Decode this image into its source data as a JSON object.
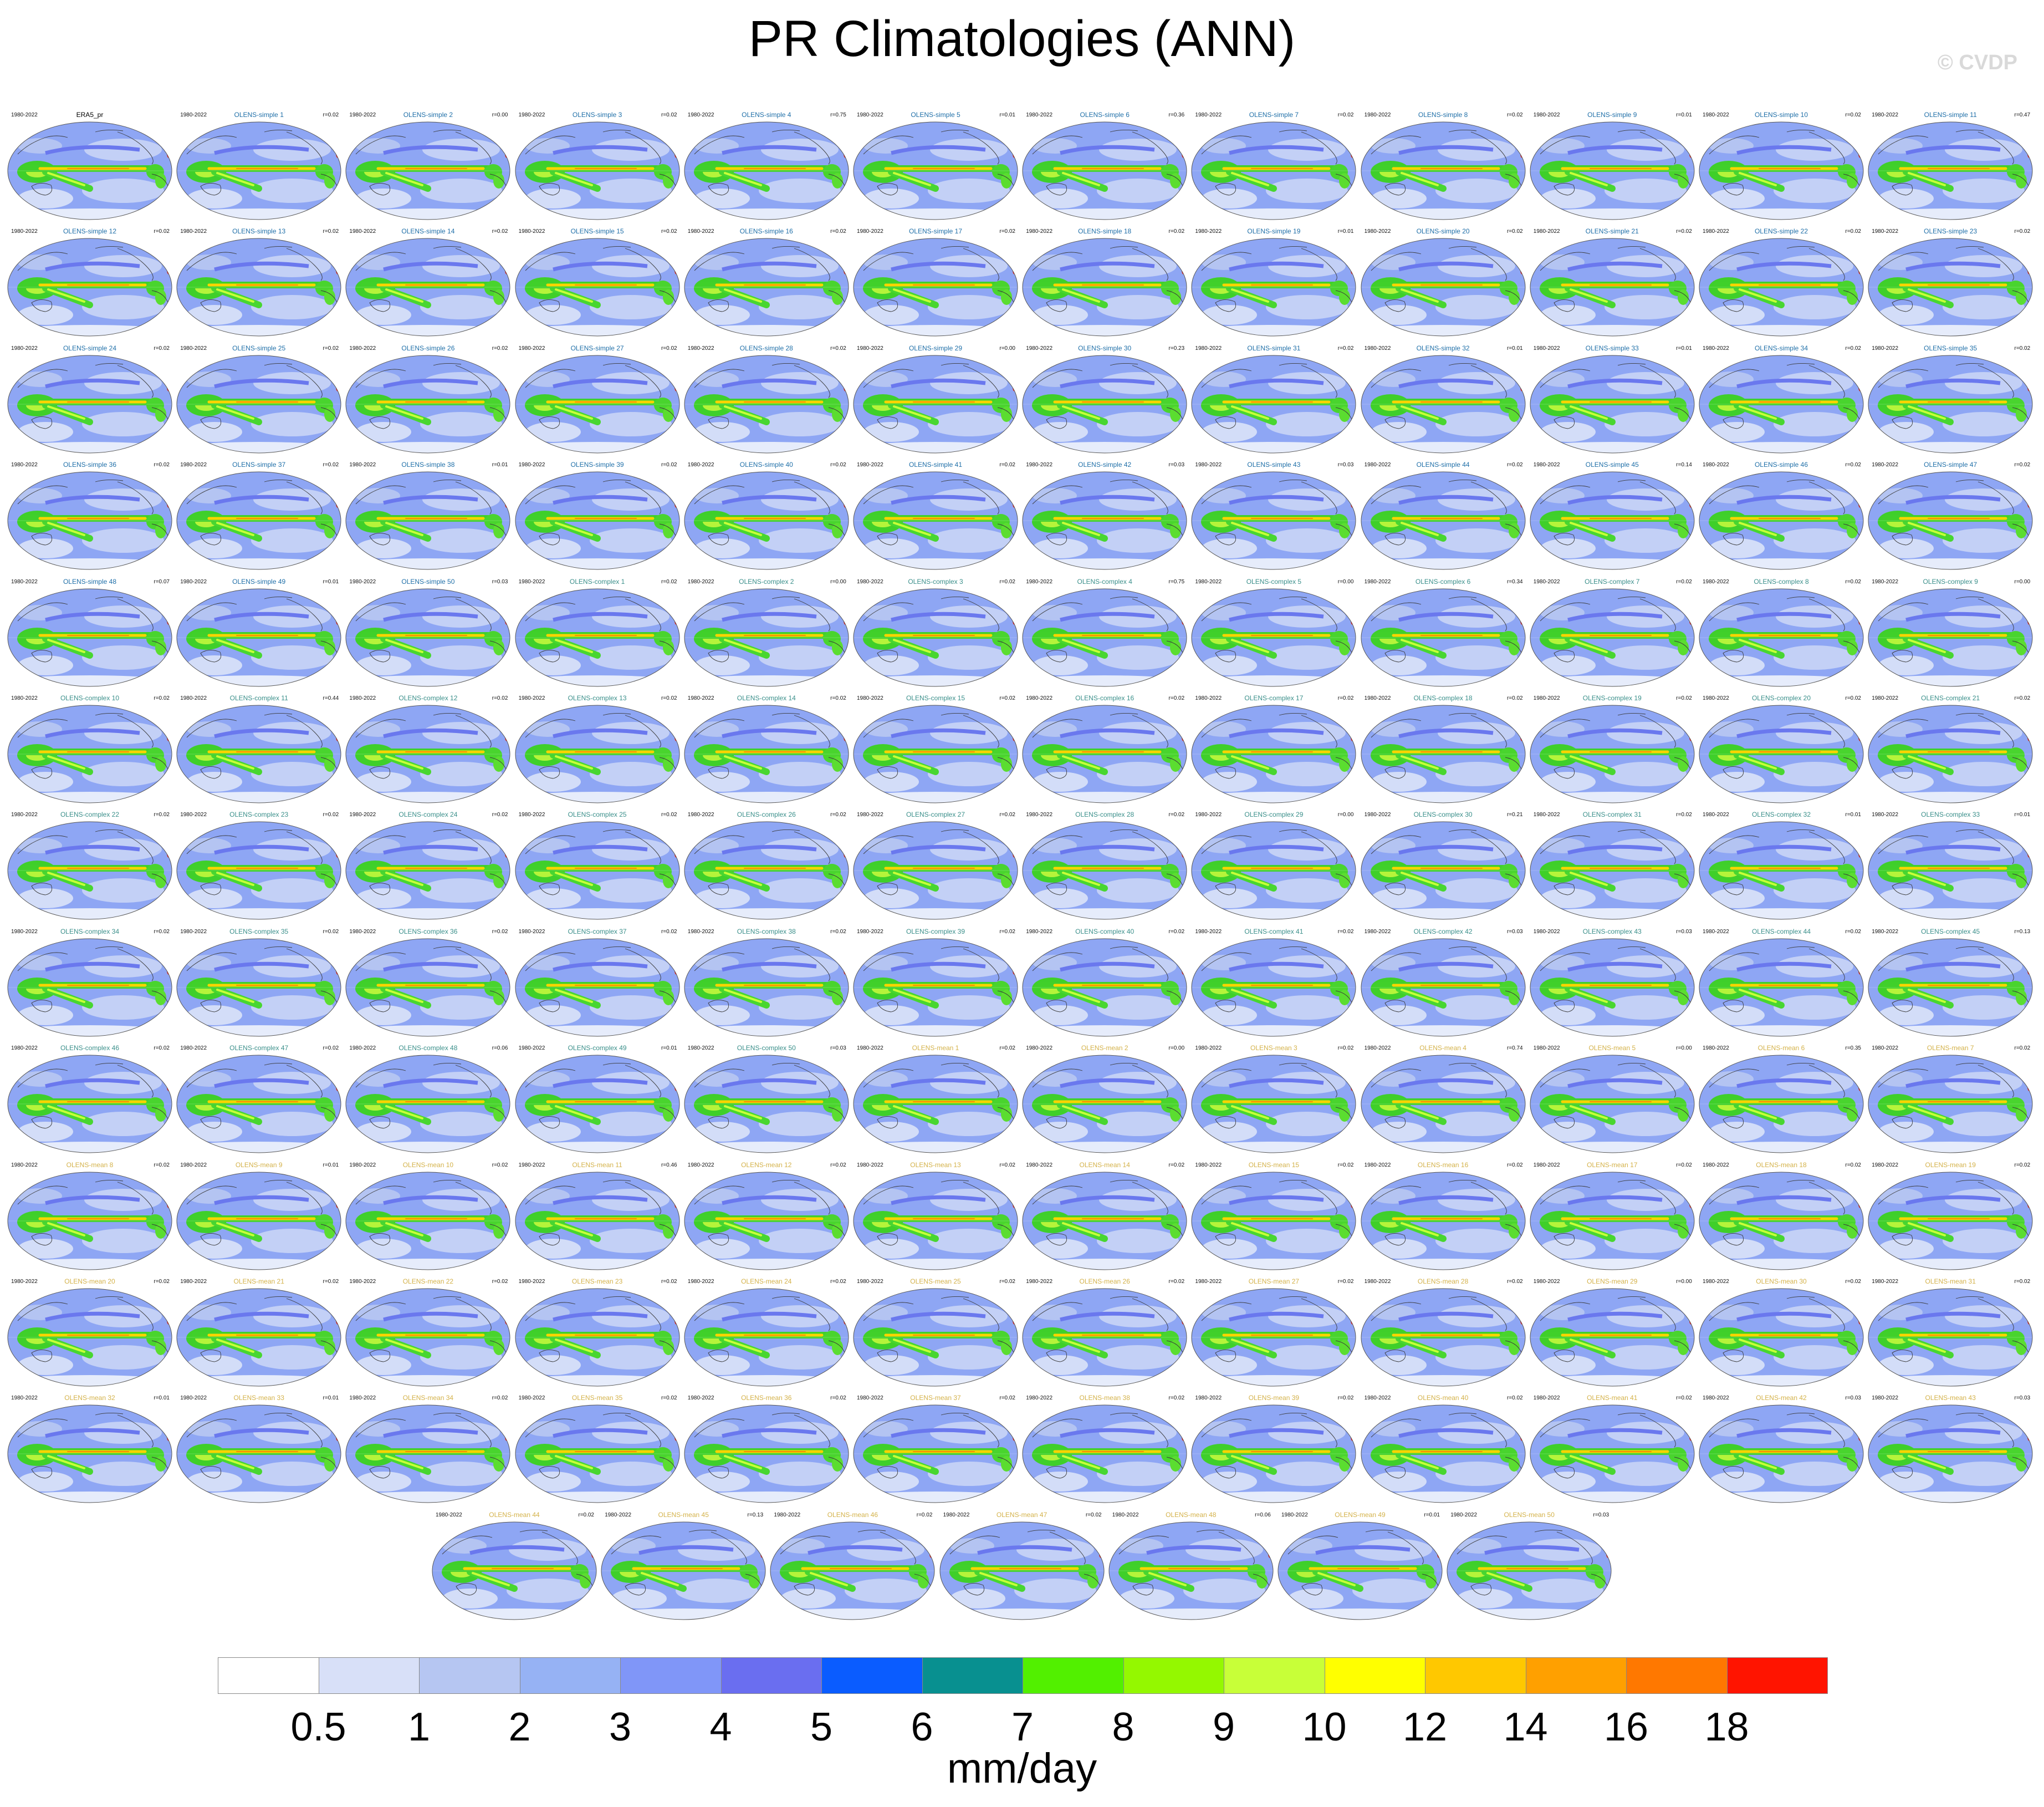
{
  "title": "PR Climatologies (ANN)",
  "credit": "© CVDP",
  "period": "1980-2022",
  "units": "mm/day",
  "colorbar": {
    "labels": [
      "0.5",
      "1",
      "2",
      "3",
      "4",
      "5",
      "6",
      "7",
      "8",
      "9",
      "10",
      "12",
      "14",
      "16",
      "18"
    ],
    "colors": [
      "#ffffff",
      "#d8e0f8",
      "#b6c6f2",
      "#96b2f4",
      "#8096f8",
      "#6a6ef0",
      "#0a5cff",
      "#089090",
      "#52f000",
      "#94f800",
      "#c8ff38",
      "#ffff00",
      "#ffc800",
      "#ffa000",
      "#ff7800",
      "#ff1400"
    ]
  },
  "panel_names": [
    "ERA5_pr",
    "OLENS-simple 1",
    "OLENS-simple 2",
    "OLENS-simple 3",
    "OLENS-simple 4",
    "OLENS-simple 5",
    "OLENS-simple 6",
    "OLENS-simple 7",
    "OLENS-simple 8",
    "OLENS-simple 9",
    "OLENS-simple 10",
    "OLENS-simple 11",
    "OLENS-simple 12",
    "OLENS-simple 13",
    "OLENS-simple 14",
    "OLENS-simple 15",
    "OLENS-simple 16",
    "OLENS-simple 17",
    "OLENS-simple 18",
    "OLENS-simple 19",
    "OLENS-simple 20",
    "OLENS-simple 21",
    "OLENS-simple 22",
    "OLENS-simple 23",
    "OLENS-simple 24",
    "OLENS-simple 25",
    "OLENS-simple 26",
    "OLENS-simple 27",
    "OLENS-simple 28",
    "OLENS-simple 29",
    "OLENS-simple 30",
    "OLENS-simple 31",
    "OLENS-simple 32",
    "OLENS-simple 33",
    "OLENS-simple 34",
    "OLENS-simple 35",
    "OLENS-simple 36",
    "OLENS-simple 37",
    "OLENS-simple 38",
    "OLENS-simple 39",
    "OLENS-simple 40",
    "OLENS-simple 41",
    "OLENS-simple 42",
    "OLENS-simple 43",
    "OLENS-simple 44",
    "OLENS-simple 45",
    "OLENS-simple 46",
    "OLENS-simple 47",
    "OLENS-simple 48",
    "OLENS-simple 49",
    "OLENS-simple 50",
    "OLENS-complex 1",
    "OLENS-complex 2",
    "OLENS-complex 3",
    "OLENS-complex 4",
    "OLENS-complex 5",
    "OLENS-complex 6",
    "OLENS-complex 7",
    "OLENS-complex 8",
    "OLENS-complex 9",
    "OLENS-complex 10",
    "OLENS-complex 11",
    "OLENS-complex 12",
    "OLENS-complex 13",
    "OLENS-complex 14",
    "OLENS-complex 15",
    "OLENS-complex 16",
    "OLENS-complex 17",
    "OLENS-complex 18",
    "OLENS-complex 19",
    "OLENS-complex 20",
    "OLENS-complex 21",
    "OLENS-complex 22",
    "OLENS-complex 23",
    "OLENS-complex 24",
    "OLENS-complex 25",
    "OLENS-complex 26",
    "OLENS-complex 27",
    "OLENS-complex 28",
    "OLENS-complex 29",
    "OLENS-complex 30",
    "OLENS-complex 31",
    "OLENS-complex 32",
    "OLENS-complex 33",
    "OLENS-complex 34",
    "OLENS-complex 35",
    "OLENS-complex 36",
    "OLENS-complex 37",
    "OLENS-complex 38",
    "OLENS-complex 39",
    "OLENS-complex 40",
    "OLENS-complex 41",
    "OLENS-complex 42",
    "OLENS-complex 43",
    "OLENS-complex 44",
    "OLENS-complex 45",
    "OLENS-complex 46",
    "OLENS-complex 47",
    "OLENS-complex 48",
    "OLENS-complex 49",
    "OLENS-complex 50",
    "OLENS-mean 1",
    "OLENS-mean 2",
    "OLENS-mean 3",
    "OLENS-mean 4",
    "OLENS-mean 5",
    "OLENS-mean 6",
    "OLENS-mean 7",
    "OLENS-mean 8",
    "OLENS-mean 9",
    "OLENS-mean 10",
    "OLENS-mean 11",
    "OLENS-mean 12",
    "OLENS-mean 13",
    "OLENS-mean 14",
    "OLENS-mean 15",
    "OLENS-mean 16",
    "OLENS-mean 17",
    "OLENS-mean 18",
    "OLENS-mean 19",
    "OLENS-mean 20",
    "OLENS-mean 21",
    "OLENS-mean 22",
    "OLENS-mean 23",
    "OLENS-mean 24",
    "OLENS-mean 25",
    "OLENS-mean 26",
    "OLENS-mean 27",
    "OLENS-mean 28",
    "OLENS-mean 29",
    "OLENS-mean 30",
    "OLENS-mean 31",
    "OLENS-mean 32",
    "OLENS-mean 33",
    "OLENS-mean 34",
    "OLENS-mean 35",
    "OLENS-mean 36",
    "OLENS-mean 37",
    "OLENS-mean 38",
    "OLENS-mean 39",
    "OLENS-mean 40",
    "OLENS-mean 41",
    "OLENS-mean 42",
    "OLENS-mean 43",
    "OLENS-mean 44",
    "OLENS-mean 45",
    "OLENS-mean 46",
    "OLENS-mean 47",
    "OLENS-mean 48",
    "OLENS-mean 49",
    "OLENS-mean 50"
  ],
  "panel_r": [
    "",
    "r=0.02",
    "r=0.00",
    "r=0.02",
    "r=0.75",
    "r=0.01",
    "r=0.36",
    "r=0.02",
    "r=0.02",
    "r=0.01",
    "r=0.02",
    "r=0.47",
    "r=0.02",
    "r=0.02",
    "r=0.02",
    "r=0.02",
    "r=0.02",
    "r=0.02",
    "r=0.02",
    "r=0.01",
    "r=0.02",
    "r=0.02",
    "r=0.02",
    "r=0.02",
    "r=0.02",
    "r=0.02",
    "r=0.02",
    "r=0.02",
    "r=0.02",
    "r=0.00",
    "r=0.23",
    "r=0.02",
    "r=0.01",
    "r=0.01",
    "r=0.02",
    "r=0.02",
    "r=0.02",
    "r=0.02",
    "r=0.01",
    "r=0.02",
    "r=0.02",
    "r=0.02",
    "r=0.03",
    "r=0.03",
    "r=0.02",
    "r=0.14",
    "r=0.02",
    "r=0.02",
    "r=0.07",
    "r=0.01",
    "r=0.03",
    "r=0.02",
    "r=0.00",
    "r=0.02",
    "r=0.75",
    "r=0.00",
    "r=0.34",
    "r=0.02",
    "r=0.02",
    "r=0.00",
    "r=0.02",
    "r=0.44",
    "r=0.02",
    "r=0.02",
    "r=0.02",
    "r=0.02",
    "r=0.02",
    "r=0.02",
    "r=0.02",
    "r=0.02",
    "r=0.02",
    "r=0.02",
    "r=0.02",
    "r=0.02",
    "r=0.02",
    "r=0.02",
    "r=0.02",
    "r=0.02",
    "r=0.02",
    "r=0.00",
    "r=0.21",
    "r=0.02",
    "r=0.01",
    "r=0.01",
    "r=0.02",
    "r=0.02",
    "r=0.02",
    "r=0.02",
    "r=0.02",
    "r=0.02",
    "r=0.02",
    "r=0.02",
    "r=0.03",
    "r=0.03",
    "r=0.02",
    "r=0.13",
    "r=0.02",
    "r=0.02",
    "r=0.06",
    "r=0.01",
    "r=0.03",
    "r=0.02",
    "r=0.00",
    "r=0.02",
    "r=0.74",
    "r=0.00",
    "r=0.35",
    "r=0.02",
    "r=0.02",
    "r=0.01",
    "r=0.02",
    "r=0.46",
    "r=0.02",
    "r=0.02",
    "r=0.02",
    "r=0.02",
    "r=0.02",
    "r=0.02",
    "r=0.02",
    "r=0.02",
    "r=0.02",
    "r=0.02",
    "r=0.02",
    "r=0.02",
    "r=0.02",
    "r=0.02",
    "r=0.02",
    "r=0.02",
    "r=0.02",
    "r=0.00",
    "r=0.02",
    "r=0.02",
    "r=0.01",
    "r=0.01",
    "r=0.02",
    "r=0.02",
    "r=0.02",
    "r=0.02",
    "r=0.02",
    "r=0.02",
    "r=0.02",
    "r=0.02",
    "r=0.03",
    "r=0.03",
    "r=0.02",
    "r=0.13",
    "r=0.02",
    "r=0.02",
    "r=0.06",
    "r=0.01",
    "r=0.03"
  ],
  "panel_label_colors": {
    "obs": "#000000",
    "simple": "#1f6fa8",
    "complex": "#3a8f8a",
    "mean": "#d4b24a"
  }
}
